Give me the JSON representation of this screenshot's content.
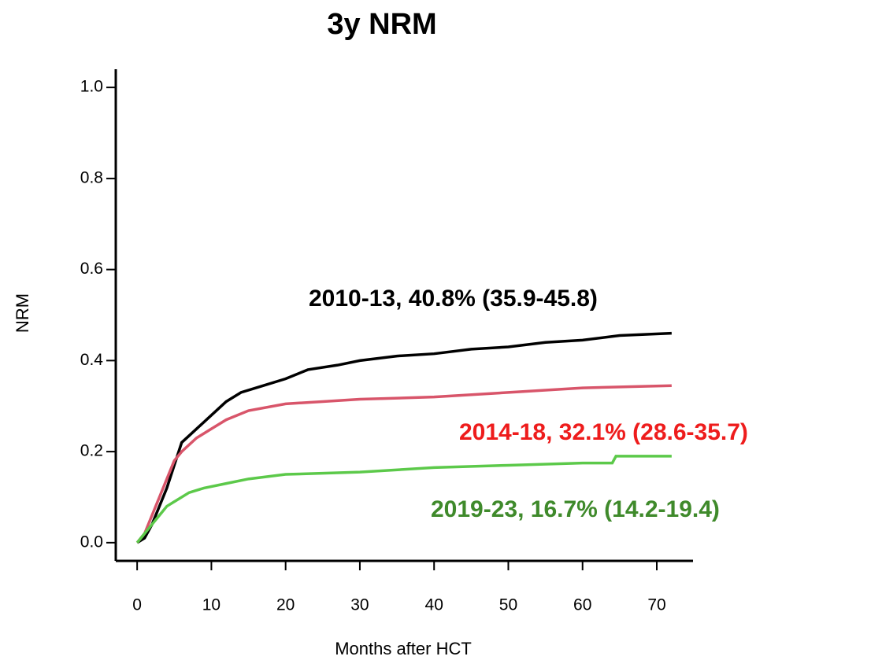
{
  "chart_data": {
    "type": "line",
    "title": "3y NRM",
    "x_label": "Months after HCT",
    "y_label": "NRM",
    "xlim": [
      -2.88,
      74.88
    ],
    "xticks": [
      0,
      10,
      20,
      30,
      40,
      50,
      60,
      70
    ],
    "ylim": [
      -0.04,
      1.04
    ],
    "yticks": [
      {
        "value": 0,
        "label": "0.0"
      },
      {
        "value": 0.2,
        "label": "0.2"
      },
      {
        "value": 0.4,
        "label": "0.4"
      },
      {
        "value": 0.6,
        "label": "0.6"
      },
      {
        "value": 0.8,
        "label": "0.8"
      },
      {
        "value": 1,
        "label": "1.0"
      }
    ],
    "series": [
      {
        "color": "#000000",
        "x": [
          0,
          1,
          2,
          3,
          4,
          5,
          6,
          8,
          10,
          12,
          14,
          17,
          20,
          23,
          27,
          30,
          35,
          40,
          45,
          50,
          55,
          60,
          65,
          72
        ],
        "values": [
          0,
          0.01,
          0.04,
          0.08,
          0.12,
          0.17,
          0.22,
          0.25,
          0.28,
          0.31,
          0.33,
          0.345,
          0.36,
          0.38,
          0.39,
          0.4,
          0.41,
          0.415,
          0.425,
          0.43,
          0.44,
          0.445,
          0.455,
          0.46
        ]
      },
      {
        "color": "#d8556a",
        "x": [
          0,
          1,
          2,
          3,
          4,
          5,
          6,
          8,
          10,
          12,
          15,
          20,
          25,
          30,
          40,
          50,
          60,
          72
        ],
        "values": [
          0,
          0.02,
          0.06,
          0.1,
          0.14,
          0.18,
          0.2,
          0.23,
          0.25,
          0.27,
          0.29,
          0.305,
          0.31,
          0.315,
          0.32,
          0.33,
          0.34,
          0.345
        ]
      },
      {
        "color": "#5cc94a",
        "x": [
          0,
          1,
          2,
          3,
          4,
          5,
          7,
          9,
          12,
          15,
          20,
          30,
          40,
          50,
          60,
          64,
          64.5,
          72
        ],
        "values": [
          0,
          0.02,
          0.04,
          0.06,
          0.08,
          0.09,
          0.11,
          0.12,
          0.13,
          0.14,
          0.15,
          0.155,
          0.165,
          0.17,
          0.175,
          0.175,
          0.19,
          0.19
        ]
      }
    ],
    "annotations": [
      {
        "text": "2010-13, 40.8% (35.9-45.8)",
        "color": "#000000"
      },
      {
        "text": "2014-18, 32.1% (28.6-35.7)",
        "color": "#ee1c1c"
      },
      {
        "text": "2019-23, 16.7% (14.2-19.4)",
        "color": "#3f8a2b"
      }
    ]
  }
}
